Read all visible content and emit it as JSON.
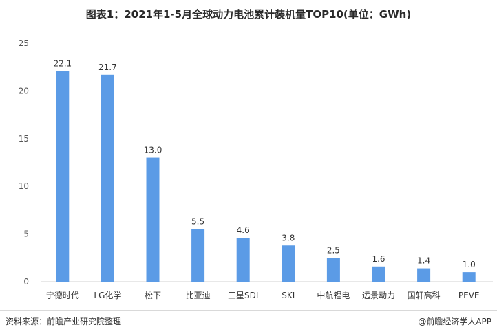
{
  "chart_data": {
    "type": "bar",
    "title": "图表1：2021年1-5月全球动力电池累计装机量TOP10(单位：GWh)",
    "categories": [
      "宁德时代",
      "LG化学",
      "松下",
      "比亚迪",
      "三星SDI",
      "SKI",
      "中航锂电",
      "远景动力",
      "国轩高科",
      "PEVE"
    ],
    "values": [
      22.1,
      21.7,
      13.0,
      5.5,
      4.6,
      3.8,
      2.5,
      1.6,
      1.4,
      1.0
    ],
    "value_labels": [
      "22.1",
      "21.7",
      "13.0",
      "5.5",
      "4.6",
      "3.8",
      "2.5",
      "1.6",
      "1.4",
      "1.0"
    ],
    "yticks": [
      "0",
      "5",
      "10",
      "15",
      "20",
      "25"
    ],
    "ylim": [
      0,
      25
    ],
    "xlabel": "",
    "ylabel": "",
    "grid": false,
    "bar_color": "#5b9be6"
  },
  "footer": {
    "source": "资料来源：前瞻产业研究院整理",
    "credit": "@前瞻经济学人APP"
  }
}
